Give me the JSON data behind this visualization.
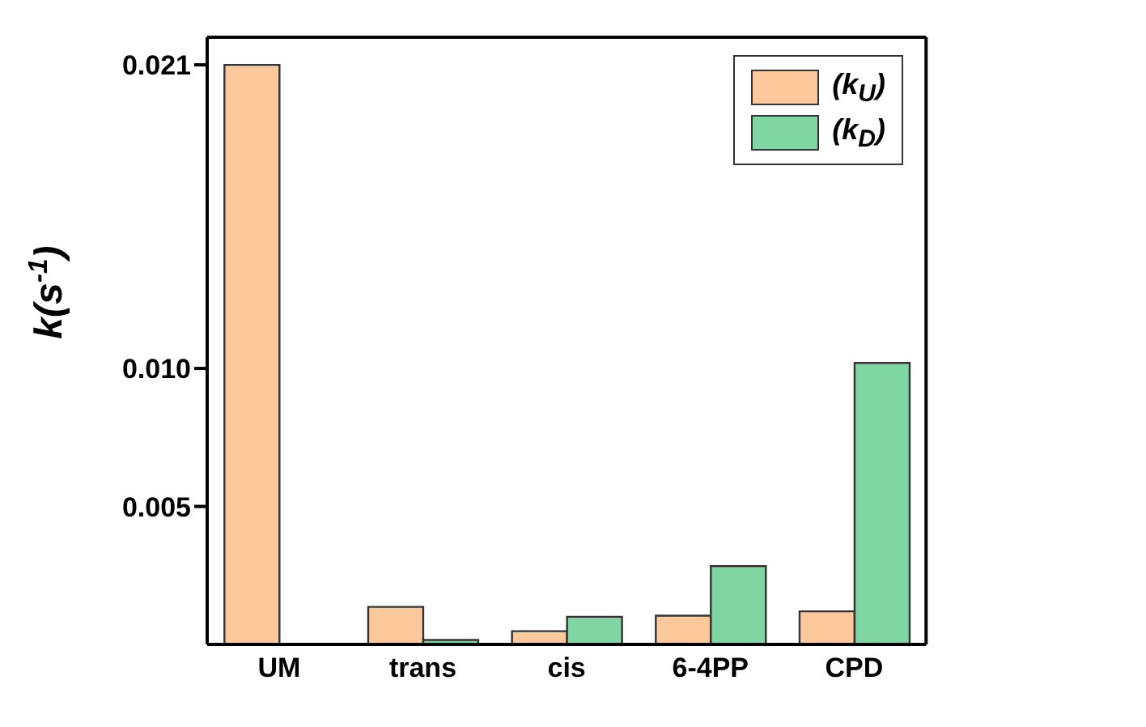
{
  "chart_data": {
    "type": "bar",
    "ylabel": "k(s$^{-1}$)",
    "categories": [
      "UM",
      "trans",
      "cis",
      "6-4PP",
      "CPD"
    ],
    "series": [
      {
        "name": "(k$_{U}$)",
        "color": "#fdc89b",
        "values": [
          0.021,
          0.00136,
          0.00048,
          0.00104,
          0.0012
        ]
      },
      {
        "name": "(k$_{D}$)",
        "color": "#7fd6a2",
        "values": [
          null,
          0.00016,
          0.001,
          0.00284,
          0.0102
        ]
      }
    ],
    "ylim": [
      0,
      0.022
    ],
    "yticks": [
      {
        "value": 0.005,
        "label": "0.005"
      },
      {
        "value": 0.01,
        "label": "0.010"
      },
      {
        "value": 0.021,
        "label": "0.021"
      }
    ],
    "legend": "top right",
    "grid": false
  }
}
